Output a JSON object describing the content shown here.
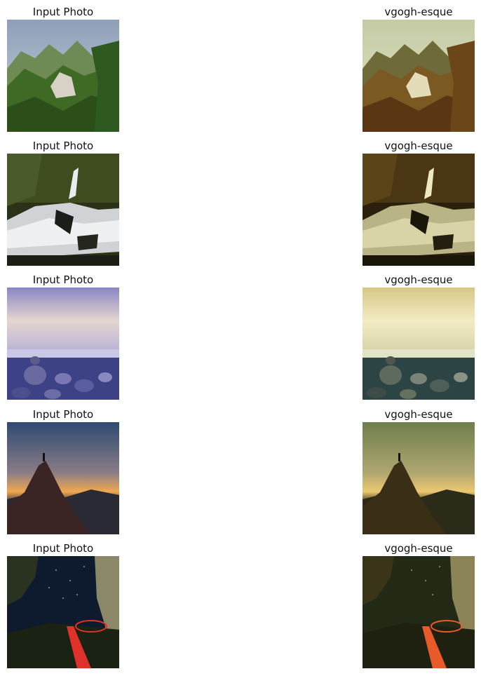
{
  "rows": [
    {
      "left": {
        "title": "Input Photo",
        "description": "mountain landscape with green forested hills and a white village on a hilltop",
        "palette": [
          "#9fb0c9",
          "#5d7c3a",
          "#2f5a1f"
        ]
      },
      "right": {
        "title": "vgogh-esque",
        "description": "same mountain landscape in warm painterly style",
        "palette": [
          "#cfd6a8",
          "#8a6a2a",
          "#5a3a14"
        ]
      }
    },
    {
      "left": {
        "title": "Input Photo",
        "description": "long-exposure waterfall and river in a dark forest",
        "palette": [
          "#3b4a22",
          "#d7d9dc",
          "#1a1c18"
        ]
      },
      "right": {
        "title": "vgogh-esque",
        "description": "same waterfall in warm brown-green painterly tones",
        "palette": [
          "#4a3a16",
          "#d6d2a4",
          "#1f1a0e"
        ]
      }
    },
    {
      "left": {
        "title": "Input Photo",
        "description": "purple sunset sky over a rocky beach with stacked stones",
        "palette": [
          "#a49fd0",
          "#e8d9d6",
          "#3a3f7a"
        ]
      },
      "right": {
        "title": "vgogh-esque",
        "description": "same rocky beach sunset in yellow-teal painterly tones",
        "palette": [
          "#e6d89a",
          "#f3ecc2",
          "#2f4a4a"
        ]
      }
    },
    {
      "left": {
        "title": "Input Photo",
        "description": "silhouette of a person standing on a rock peak at sunset",
        "palette": [
          "#3a4f73",
          "#e9a54a",
          "#2a1e20"
        ]
      },
      "right": {
        "title": "vgogh-esque",
        "description": "same sunset peak in olive-gold painterly tones",
        "palette": [
          "#7a8a54",
          "#e8c868",
          "#2a2414"
        ]
      }
    },
    {
      "left": {
        "title": "Input Photo",
        "description": "night scene with trees, starry sky and red light painting trail",
        "palette": [
          "#0e1a2e",
          "#7a7a5a",
          "#e0302a"
        ]
      },
      "right": {
        "title": "vgogh-esque",
        "description": "same night light-painting scene in olive painterly tones",
        "palette": [
          "#242a16",
          "#8a8456",
          "#e85a2a"
        ]
      }
    }
  ]
}
